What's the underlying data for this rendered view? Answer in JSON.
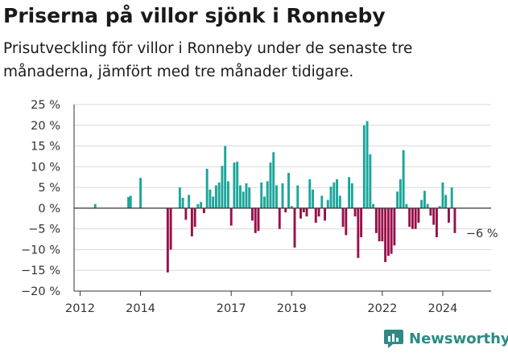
{
  "title": "Priserna på villor sjönk i Ronneby",
  "subtitle": "Prisutveckling för villor i Ronneby under de senaste tre månaderna, jämfört med tre månader tidigare.",
  "brand": "Newsworthy",
  "colors": {
    "positive": "#1aa69a",
    "negative": "#990f4a",
    "grid": "#d9d9d9",
    "axis": "#333333",
    "text": "#333333",
    "brand": "#2d8a85"
  },
  "chart_data": {
    "type": "bar",
    "ylim": [
      -20,
      25
    ],
    "xlim": [
      2011.8,
      2025.6
    ],
    "y_ticks": [
      25,
      20,
      15,
      10,
      5,
      0,
      -5,
      -10,
      -15,
      -20
    ],
    "y_tick_labels": [
      "25 %",
      "20 %",
      "15 %",
      "10 %",
      "5 %",
      "0 %",
      "−5 %",
      "−10 %",
      "−15 %",
      "−20 %"
    ],
    "x_ticks": [
      2012,
      2014,
      2017,
      2019,
      2022,
      2024
    ],
    "x_tick_labels": [
      "2012",
      "2014",
      "2017",
      "2019",
      "2022",
      "2024"
    ],
    "grid": true,
    "annotation": {
      "text": "−6 %",
      "x": 2025.3,
      "y": -6
    },
    "series": [
      {
        "x": [
          2012.5,
          2013.6,
          2013.67,
          2014.0,
          2014.9,
          2015.0,
          2015.1,
          2015.3,
          2015.4,
          2015.5,
          2015.6,
          2015.7,
          2015.8,
          2015.9,
          2016.0,
          2016.1,
          2016.2,
          2016.3,
          2016.4,
          2016.5,
          2016.6,
          2016.7,
          2016.8,
          2016.9,
          2017.0,
          2017.1,
          2017.2,
          2017.3,
          2017.4,
          2017.5,
          2017.6,
          2017.7,
          2017.8,
          2017.9,
          2018.0,
          2018.1,
          2018.2,
          2018.3,
          2018.4,
          2018.5,
          2018.6,
          2018.7,
          2018.8,
          2018.9,
          2019.0,
          2019.1,
          2019.2,
          2019.3,
          2019.4,
          2019.5,
          2019.6,
          2019.7,
          2019.8,
          2019.9,
          2020.0,
          2020.1,
          2020.2,
          2020.3,
          2020.4,
          2020.5,
          2020.6,
          2020.7,
          2020.8,
          2020.9,
          2021.0,
          2021.1,
          2021.2,
          2021.3,
          2021.4,
          2021.5,
          2021.6,
          2021.7,
          2021.8,
          2021.9,
          2022.0,
          2022.1,
          2022.2,
          2022.3,
          2022.4,
          2022.5,
          2022.6,
          2022.7,
          2022.8,
          2022.9,
          2023.0,
          2023.1,
          2023.2,
          2023.3,
          2023.4,
          2023.5,
          2023.6,
          2023.7,
          2023.8,
          2023.9,
          2024.0,
          2024.1,
          2024.2,
          2024.3,
          2024.4,
          2024.5,
          2024.6,
          2024.7,
          2024.8
        ],
        "values": [
          1,
          2.7,
          3,
          7.3,
          -15.5,
          -10,
          0,
          5,
          2.5,
          -2.8,
          3.2,
          -6.8,
          -4.5,
          1,
          1.5,
          -1.2,
          9.5,
          4.5,
          2.8,
          5.5,
          6.2,
          10.2,
          15,
          6.5,
          -4.2,
          11,
          11.2,
          5.5,
          4,
          6,
          5,
          -3,
          -6,
          -5.5,
          6.2,
          2.8,
          6.5,
          11,
          13.5,
          5.5,
          -5,
          6,
          -1,
          8.5,
          0.5,
          -9.5,
          5.5,
          -2.5,
          -1,
          -2,
          7,
          4.5,
          -3.5,
          -2,
          3,
          -3,
          2,
          5.2,
          6.2,
          7,
          3,
          -4.5,
          -6.5,
          7.5,
          6,
          -2,
          -12,
          -7,
          20,
          21,
          13,
          1,
          -6,
          -8,
          -8,
          -13,
          -11.5,
          -11,
          -9,
          4,
          7,
          14,
          1,
          -4.5,
          -5,
          -5,
          -3.5,
          2,
          4.2,
          1,
          -1.8,
          -4,
          -7,
          0.5,
          6.2,
          3.2,
          -3.5,
          5,
          -6,
          0,
          0,
          0,
          0
        ]
      }
    ]
  }
}
